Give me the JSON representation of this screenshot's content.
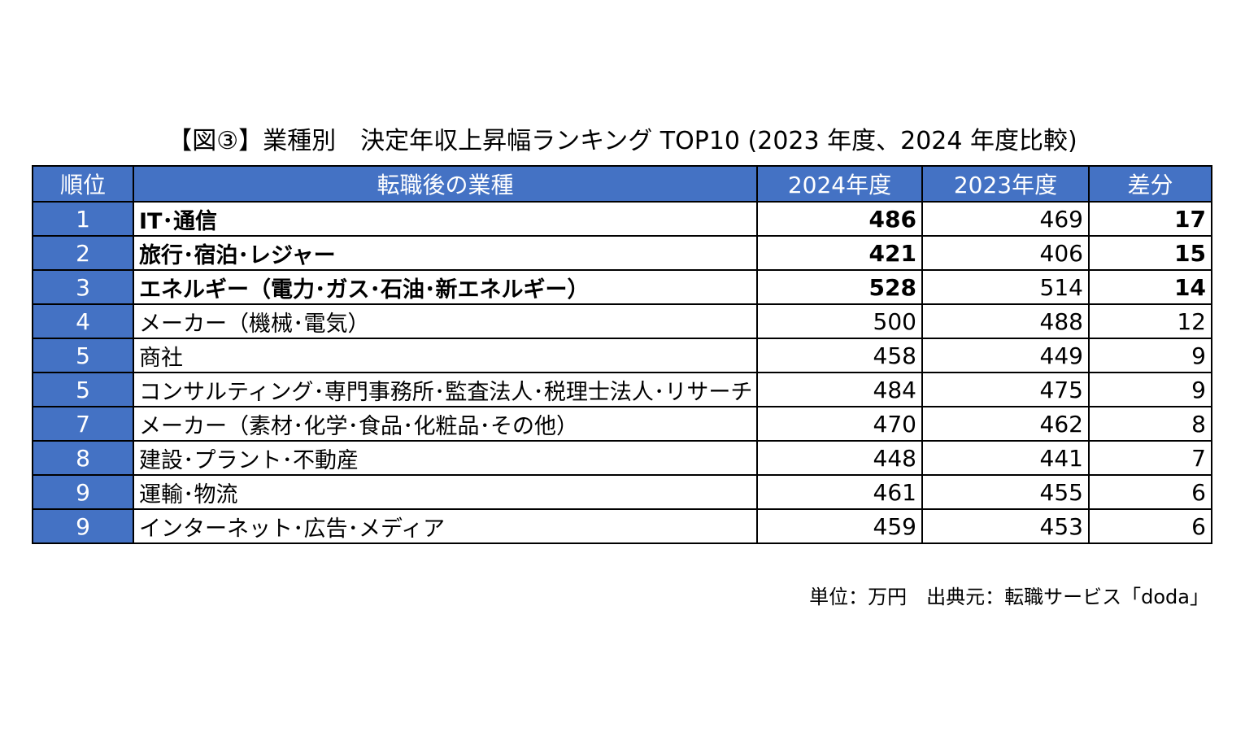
{
  "chart_data": {
    "type": "table",
    "title": "【図③】業種別　決定年収上昇幅ランキング TOP10 (2023 年度、2024 年度比較)",
    "columns": [
      "順位",
      "転職後の業種",
      "2024年度",
      "2023年度",
      "差分"
    ],
    "rows": [
      {
        "rank": "1",
        "industry": "IT･通信",
        "y2024": "486",
        "y2023": "469",
        "diff": "17",
        "bold": true
      },
      {
        "rank": "2",
        "industry": "旅行･宿泊･レジャー",
        "y2024": "421",
        "y2023": "406",
        "diff": "15",
        "bold": true
      },
      {
        "rank": "3",
        "industry": "エネルギー（電力･ガス･石油･新エネルギー）",
        "y2024": "528",
        "y2023": "514",
        "diff": "14",
        "bold": true
      },
      {
        "rank": "4",
        "industry": "メーカー（機械･電気）",
        "y2024": "500",
        "y2023": "488",
        "diff": "12",
        "bold": false
      },
      {
        "rank": "5",
        "industry": "商社",
        "y2024": "458",
        "y2023": "449",
        "diff": "9",
        "bold": false
      },
      {
        "rank": "5",
        "industry": "コンサルティング･専門事務所･監査法人･税理士法人･リサーチ",
        "y2024": "484",
        "y2023": "475",
        "diff": "9",
        "bold": false
      },
      {
        "rank": "7",
        "industry": "メーカー（素材･化学･食品･化粧品･その他）",
        "y2024": "470",
        "y2023": "462",
        "diff": "8",
        "bold": false
      },
      {
        "rank": "8",
        "industry": "建設･プラント･不動産",
        "y2024": "448",
        "y2023": "441",
        "diff": "7",
        "bold": false
      },
      {
        "rank": "9",
        "industry": "運輸･物流",
        "y2024": "461",
        "y2023": "455",
        "diff": "6",
        "bold": false
      },
      {
        "rank": "9",
        "industry": "インターネット･広告･メディア",
        "y2024": "459",
        "y2023": "453",
        "diff": "6",
        "bold": false
      }
    ],
    "footnote": "単位：万円　出典元：転職サービス「doda」"
  },
  "colors": {
    "header_bg": "#4472c4",
    "header_text": "#ffffff",
    "border": "#000000"
  }
}
